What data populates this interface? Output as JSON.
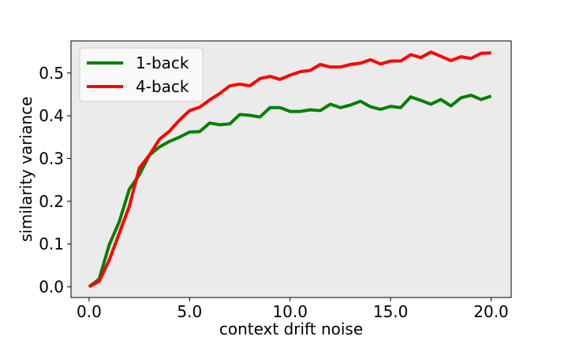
{
  "chart_data": {
    "type": "line",
    "title": "",
    "xlabel": "context drift noise",
    "ylabel": "similarity variance",
    "xlim": [
      -0.9,
      21.0
    ],
    "ylim": [
      -0.025,
      0.575
    ],
    "xticks": [
      0.0,
      5.0,
      10.0,
      15.0,
      20.0
    ],
    "xtick_labels": [
      "0.0",
      "5.0",
      "10.0",
      "15.0",
      "20.0"
    ],
    "yticks": [
      0.0,
      0.1,
      0.2,
      0.3,
      0.4,
      0.5
    ],
    "ytick_labels": [
      "0.0",
      "0.1",
      "0.2",
      "0.3",
      "0.4",
      "0.5"
    ],
    "grid": false,
    "background": "#ebebeb",
    "legend_position": "top-left",
    "x": [
      0.0,
      0.5,
      1.0,
      1.5,
      2.0,
      2.5,
      3.0,
      3.5,
      4.0,
      4.5,
      5.0,
      5.5,
      6.0,
      6.5,
      7.0,
      7.5,
      8.0,
      8.5,
      9.0,
      9.5,
      10.0,
      10.5,
      11.0,
      11.5,
      12.0,
      12.5,
      13.0,
      13.5,
      14.0,
      14.5,
      15.0,
      15.5,
      16.0,
      16.5,
      17.0,
      17.5,
      18.0,
      18.5,
      19.0,
      19.5,
      20.0
    ],
    "series": [
      {
        "name": "1-back",
        "color": "#008000",
        "values": [
          0.0,
          0.018,
          0.098,
          0.152,
          0.228,
          0.262,
          0.308,
          0.327,
          0.34,
          0.35,
          0.362,
          0.363,
          0.383,
          0.379,
          0.381,
          0.403,
          0.401,
          0.397,
          0.419,
          0.419,
          0.41,
          0.41,
          0.414,
          0.412,
          0.427,
          0.419,
          0.425,
          0.434,
          0.421,
          0.415,
          0.422,
          0.419,
          0.444,
          0.436,
          0.427,
          0.438,
          0.423,
          0.442,
          0.448,
          0.438,
          0.446
        ]
      },
      {
        "name": "4-back",
        "color": "#ff0000",
        "values": [
          0.0,
          0.013,
          0.062,
          0.125,
          0.188,
          0.278,
          0.308,
          0.345,
          0.364,
          0.39,
          0.412,
          0.42,
          0.437,
          0.452,
          0.47,
          0.474,
          0.47,
          0.487,
          0.492,
          0.485,
          0.495,
          0.503,
          0.506,
          0.52,
          0.514,
          0.514,
          0.52,
          0.523,
          0.531,
          0.521,
          0.528,
          0.528,
          0.543,
          0.536,
          0.549,
          0.539,
          0.529,
          0.538,
          0.534,
          0.546,
          0.547
        ]
      }
    ]
  }
}
